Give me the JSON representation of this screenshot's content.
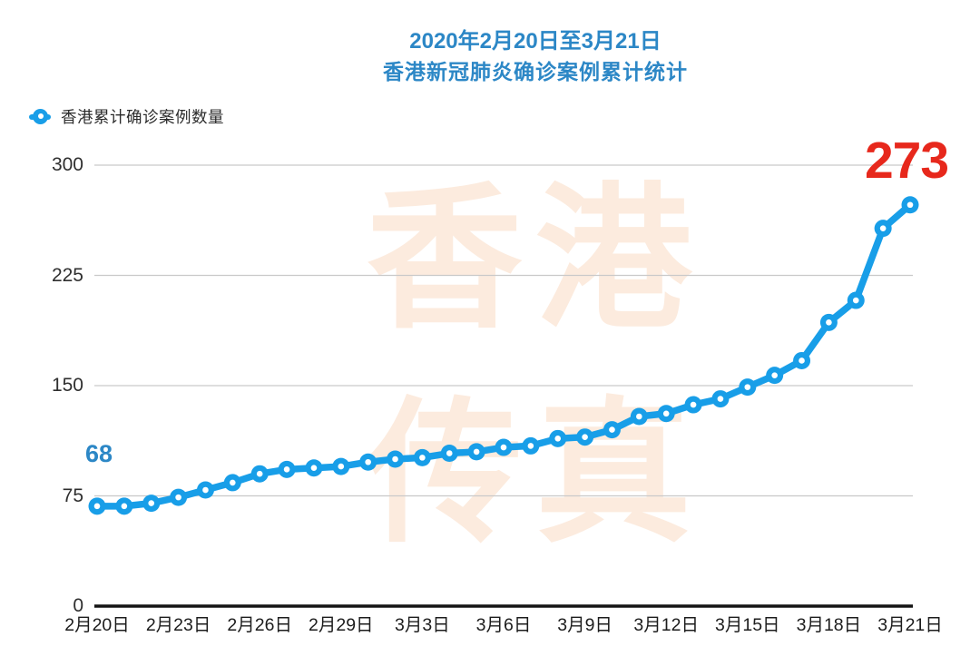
{
  "title": {
    "line1": "2020年2月20日至3月21日",
    "line2": "香港新冠肺炎确诊案例累计统计"
  },
  "legend": {
    "label": "香港累计确诊案例数量"
  },
  "watermark": {
    "line1": "香港",
    "line2": "传真"
  },
  "colors": {
    "line": "#189EE8",
    "title_blue": "#2C87C6",
    "annotation_red": "#E7281C",
    "watermark": "#FCEBDE",
    "grid": "#C9C9C9",
    "axis": "#141414",
    "tick_text": "#2F2F2F"
  },
  "chart_data": {
    "type": "line",
    "title": "2020年2月20日至3月21日 香港新冠肺炎确诊案例累计统计",
    "series": [
      {
        "name": "香港累计确诊案例数量",
        "x": [
          "2月20日",
          "2月21日",
          "2月22日",
          "2月23日",
          "2月24日",
          "2月25日",
          "2月26日",
          "2月27日",
          "2月28日",
          "2月29日",
          "3月1日",
          "3月2日",
          "3月3日",
          "3月4日",
          "3月5日",
          "3月6日",
          "3月7日",
          "3月8日",
          "3月9日",
          "3月10日",
          "3月11日",
          "3月12日",
          "3月13日",
          "3月14日",
          "3月15日",
          "3月16日",
          "3月17日",
          "3月18日",
          "3月19日",
          "3月20日",
          "3月21日"
        ],
        "values": [
          68,
          68,
          70,
          74,
          79,
          84,
          90,
          93,
          94,
          95,
          98,
          100,
          101,
          104,
          105,
          108,
          109,
          114,
          115,
          120,
          129,
          131,
          137,
          141,
          149,
          157,
          167,
          193,
          208,
          257,
          273
        ]
      }
    ],
    "x_tick_labels": [
      "2月20日",
      "2月23日",
      "2月26日",
      "2月29日",
      "3月3日",
      "3月6日",
      "3月9日",
      "3月12日",
      "3月15日",
      "3月18日",
      "3月21日"
    ],
    "x_tick_every": 3,
    "y_ticks": [
      0,
      75,
      150,
      225,
      300
    ],
    "ylim": [
      0,
      300
    ],
    "xlabel": "",
    "ylabel": "",
    "grid": "horizontal",
    "legend_position": "top-left",
    "marker_style": "dot-with-white-hole",
    "annotations": [
      {
        "text": "68",
        "x": "2月20日",
        "value": 68,
        "color": "#2C87C6",
        "position": "above-first-point"
      },
      {
        "text": "273",
        "x": "3月21日",
        "value": 273,
        "color": "#E7281C",
        "position": "above-last-point"
      }
    ]
  }
}
